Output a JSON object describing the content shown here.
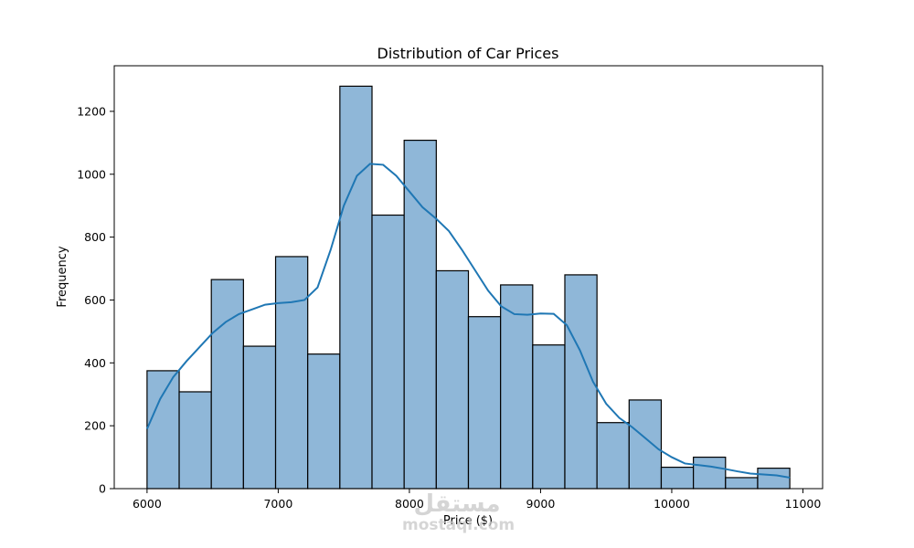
{
  "chart_data": {
    "type": "bar",
    "title": "Distribution of Car Prices",
    "xlabel": "Price ($)",
    "ylabel": "Frequency",
    "xlim": [
      5750,
      11150
    ],
    "ylim": [
      0,
      1345
    ],
    "xticks": [
      6000,
      7000,
      8000,
      9000,
      10000,
      11000
    ],
    "yticks": [
      0,
      200,
      400,
      600,
      800,
      1000,
      1200
    ],
    "bin_start": 6000,
    "bin_width": 245,
    "values": [
      375,
      308,
      665,
      453,
      738,
      428,
      1280,
      870,
      1108,
      693,
      547,
      648,
      457,
      680,
      210,
      282,
      68,
      100,
      35,
      65
    ],
    "kde": {
      "x": [
        6000,
        6100,
        6200,
        6300,
        6400,
        6500,
        6600,
        6700,
        6800,
        6900,
        7000,
        7100,
        7200,
        7300,
        7400,
        7500,
        7600,
        7700,
        7800,
        7900,
        8000,
        8100,
        8200,
        8300,
        8400,
        8500,
        8600,
        8700,
        8800,
        8900,
        9000,
        9100,
        9200,
        9300,
        9400,
        9500,
        9600,
        9700,
        9800,
        9900,
        10000,
        10100,
        10200,
        10300,
        10400,
        10500,
        10600,
        10700,
        10800,
        10900
      ],
      "y": [
        190,
        285,
        355,
        405,
        450,
        495,
        530,
        555,
        570,
        585,
        590,
        593,
        600,
        640,
        760,
        900,
        995,
        1033,
        1030,
        995,
        945,
        895,
        860,
        820,
        760,
        695,
        630,
        580,
        555,
        553,
        557,
        556,
        520,
        440,
        340,
        270,
        225,
        195,
        160,
        125,
        100,
        80,
        75,
        70,
        63,
        55,
        48,
        45,
        42,
        35
      ]
    },
    "grid": false,
    "legend": "none"
  },
  "watermark": {
    "logo": "مستقل",
    "text": "mostaql.com"
  }
}
